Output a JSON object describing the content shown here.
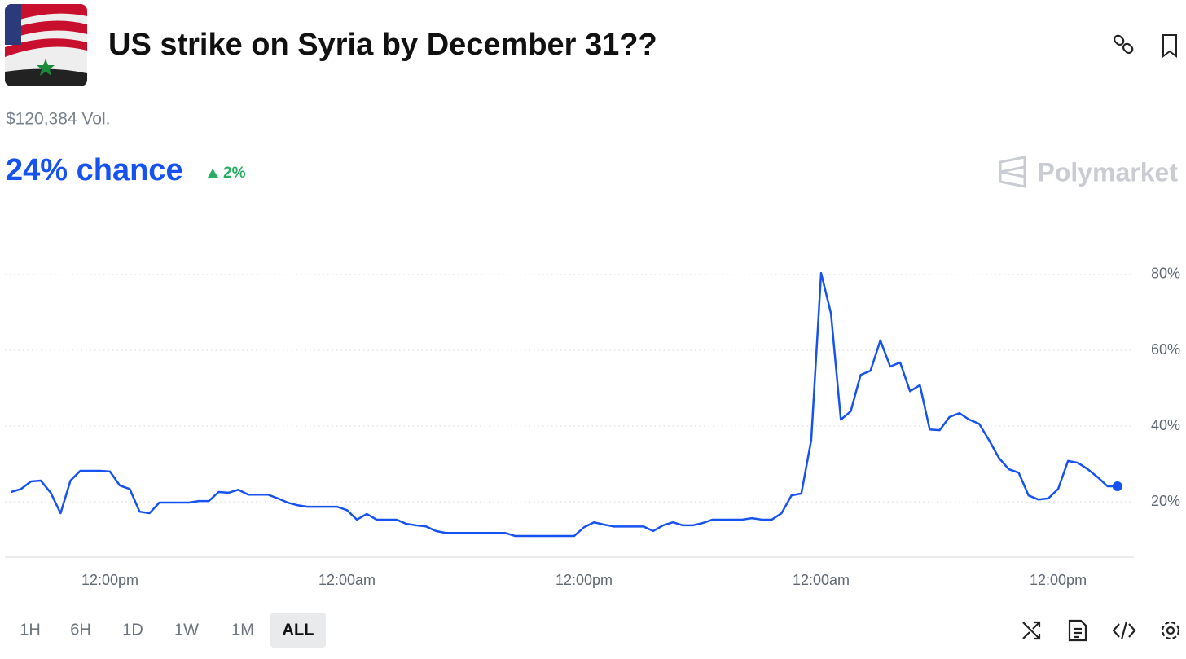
{
  "header": {
    "title": "US strike on Syria by December 31??",
    "volume": "$120,384 Vol.",
    "chance": "24% chance",
    "change": "2%",
    "brand": "Polymarket"
  },
  "time_ranges": [
    "1H",
    "6H",
    "1D",
    "1W",
    "1M",
    "ALL"
  ],
  "selected_range": "ALL",
  "chart_data": {
    "type": "line",
    "color": "#1652f0",
    "categories": [
      null,
      null,
      null,
      null,
      null,
      null,
      null,
      null,
      null,
      null,
      "12:00pm",
      null,
      null,
      null,
      null,
      null,
      null,
      null,
      null,
      null,
      null,
      null,
      null,
      null,
      null,
      null,
      null,
      null,
      null,
      null,
      null,
      null,
      null,
      null,
      "12:00am",
      null,
      null,
      null,
      null,
      null,
      null,
      null,
      null,
      null,
      null,
      null,
      null,
      null,
      null,
      null,
      null,
      null,
      null,
      null,
      null,
      null,
      null,
      null,
      "12:00pm",
      null,
      null,
      null,
      null,
      null,
      null,
      null,
      null,
      null,
      null,
      null,
      null,
      null,
      null,
      null,
      null,
      null,
      null,
      null,
      null,
      null,
      null,
      null,
      "12:00am",
      null,
      null,
      null,
      null,
      null,
      null,
      null,
      null,
      null,
      null,
      null,
      null,
      null,
      null,
      null,
      null,
      null,
      null,
      null,
      null,
      null,
      null,
      null,
      "12:00pm",
      null,
      null,
      null,
      null,
      null,
      null
    ],
    "values": [
      22.6,
      23.4,
      25.4,
      25.6,
      22.4,
      17,
      25.6,
      28.2,
      28.2,
      28.2,
      28,
      24.3,
      23.4,
      17.4,
      17,
      19.8,
      19.8,
      19.8,
      19.8,
      20.2,
      20.2,
      22.6,
      22.4,
      23.2,
      21.9,
      21.9,
      21.9,
      20.9,
      19.8,
      19.1,
      18.7,
      18.7,
      18.7,
      18.7,
      17.8,
      15.3,
      16.8,
      15.3,
      15.3,
      15.3,
      14.2,
      13.8,
      13.5,
      12.3,
      11.8,
      11.8,
      11.8,
      11.8,
      11.8,
      11.8,
      11.8,
      11,
      11,
      11,
      11,
      11,
      11,
      11,
      13.3,
      14.6,
      14,
      13.5,
      13.5,
      13.5,
      13.5,
      12.3,
      13.8,
      14.6,
      13.8,
      13.8,
      14.4,
      15.3,
      15.3,
      15.3,
      15.3,
      15.7,
      15.3,
      15.3,
      17,
      21.7,
      22.2,
      36.3,
      80.4,
      69.7,
      41.7,
      43.9,
      53.5,
      54.6,
      62.6,
      55.7,
      56.8,
      49.2,
      50.8,
      39.1,
      38.9,
      42.4,
      43.4,
      41.7,
      40.6,
      36.3,
      31.6,
      28.6,
      27.7,
      21.7,
      20.6,
      20.9,
      23.4,
      30.8,
      30.3,
      28.6,
      26.5,
      24.1,
      24.1
    ],
    "ylim": [
      5.4,
      90.1
    ],
    "yticks": [
      {
        "value": 20,
        "label": "20%"
      },
      {
        "value": 40,
        "label": "40%"
      },
      {
        "value": 60,
        "label": "60%"
      },
      {
        "value": 80,
        "label": "80%"
      }
    ],
    "grid": true
  }
}
